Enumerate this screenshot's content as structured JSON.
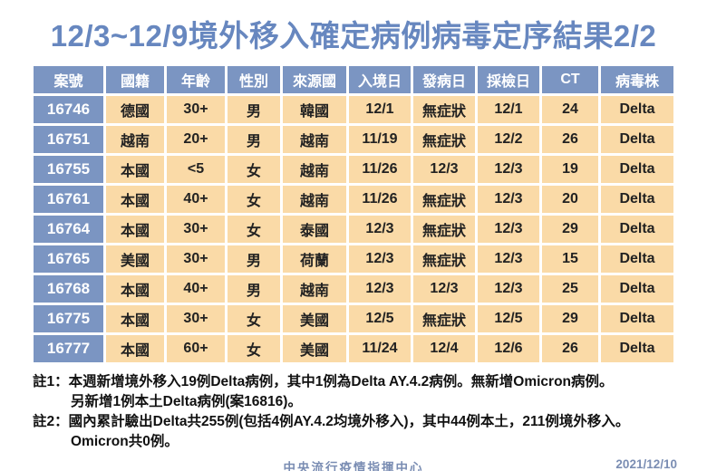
{
  "title": "12/3~12/9境外移入確定病例病毒定序結果2/2",
  "table": {
    "headers": [
      "案號",
      "國籍",
      "年齡",
      "性別",
      "來源國",
      "入境日",
      "發病日",
      "採檢日",
      "CT",
      "病毒株"
    ],
    "rows": [
      [
        "16746",
        "德國",
        "30+",
        "男",
        "韓國",
        "12/1",
        "無症狀",
        "12/1",
        "24",
        "Delta"
      ],
      [
        "16751",
        "越南",
        "20+",
        "男",
        "越南",
        "11/19",
        "無症狀",
        "12/2",
        "26",
        "Delta"
      ],
      [
        "16755",
        "本國",
        "<5",
        "女",
        "越南",
        "11/26",
        "12/3",
        "12/3",
        "19",
        "Delta"
      ],
      [
        "16761",
        "本國",
        "40+",
        "女",
        "越南",
        "11/26",
        "無症狀",
        "12/3",
        "20",
        "Delta"
      ],
      [
        "16764",
        "本國",
        "30+",
        "女",
        "泰國",
        "12/3",
        "無症狀",
        "12/3",
        "29",
        "Delta"
      ],
      [
        "16765",
        "美國",
        "30+",
        "男",
        "荷蘭",
        "12/3",
        "無症狀",
        "12/3",
        "15",
        "Delta"
      ],
      [
        "16768",
        "本國",
        "40+",
        "男",
        "越南",
        "12/3",
        "12/3",
        "12/3",
        "25",
        "Delta"
      ],
      [
        "16775",
        "本國",
        "30+",
        "女",
        "美國",
        "12/5",
        "無症狀",
        "12/5",
        "29",
        "Delta"
      ],
      [
        "16777",
        "本國",
        "60+",
        "女",
        "美國",
        "11/24",
        "12/4",
        "12/6",
        "26",
        "Delta"
      ]
    ]
  },
  "notes": [
    {
      "label": "註1：",
      "line1": "本週新增境外移入19例Delta病例，其中1例為Delta AY.4.2病例。無新增Omicron病例。",
      "line2": "另新增1例本土Delta病例(案16816)。"
    },
    {
      "label": "註2：",
      "line1": "國內累計驗出Delta共255例(包括4例AY.4.2均境外移入)，其中44例本土，211例境外移入。",
      "line2": "Omicron共0例。"
    }
  ],
  "footer": {
    "org": "中央流行疫情指揮中心",
    "date": "2021/12/10"
  },
  "colors": {
    "title_blue": "#6787bf",
    "header_bg": "#7b95c2",
    "cell_bg": "#fadaa7",
    "footer_blue": "#7a8db3"
  }
}
